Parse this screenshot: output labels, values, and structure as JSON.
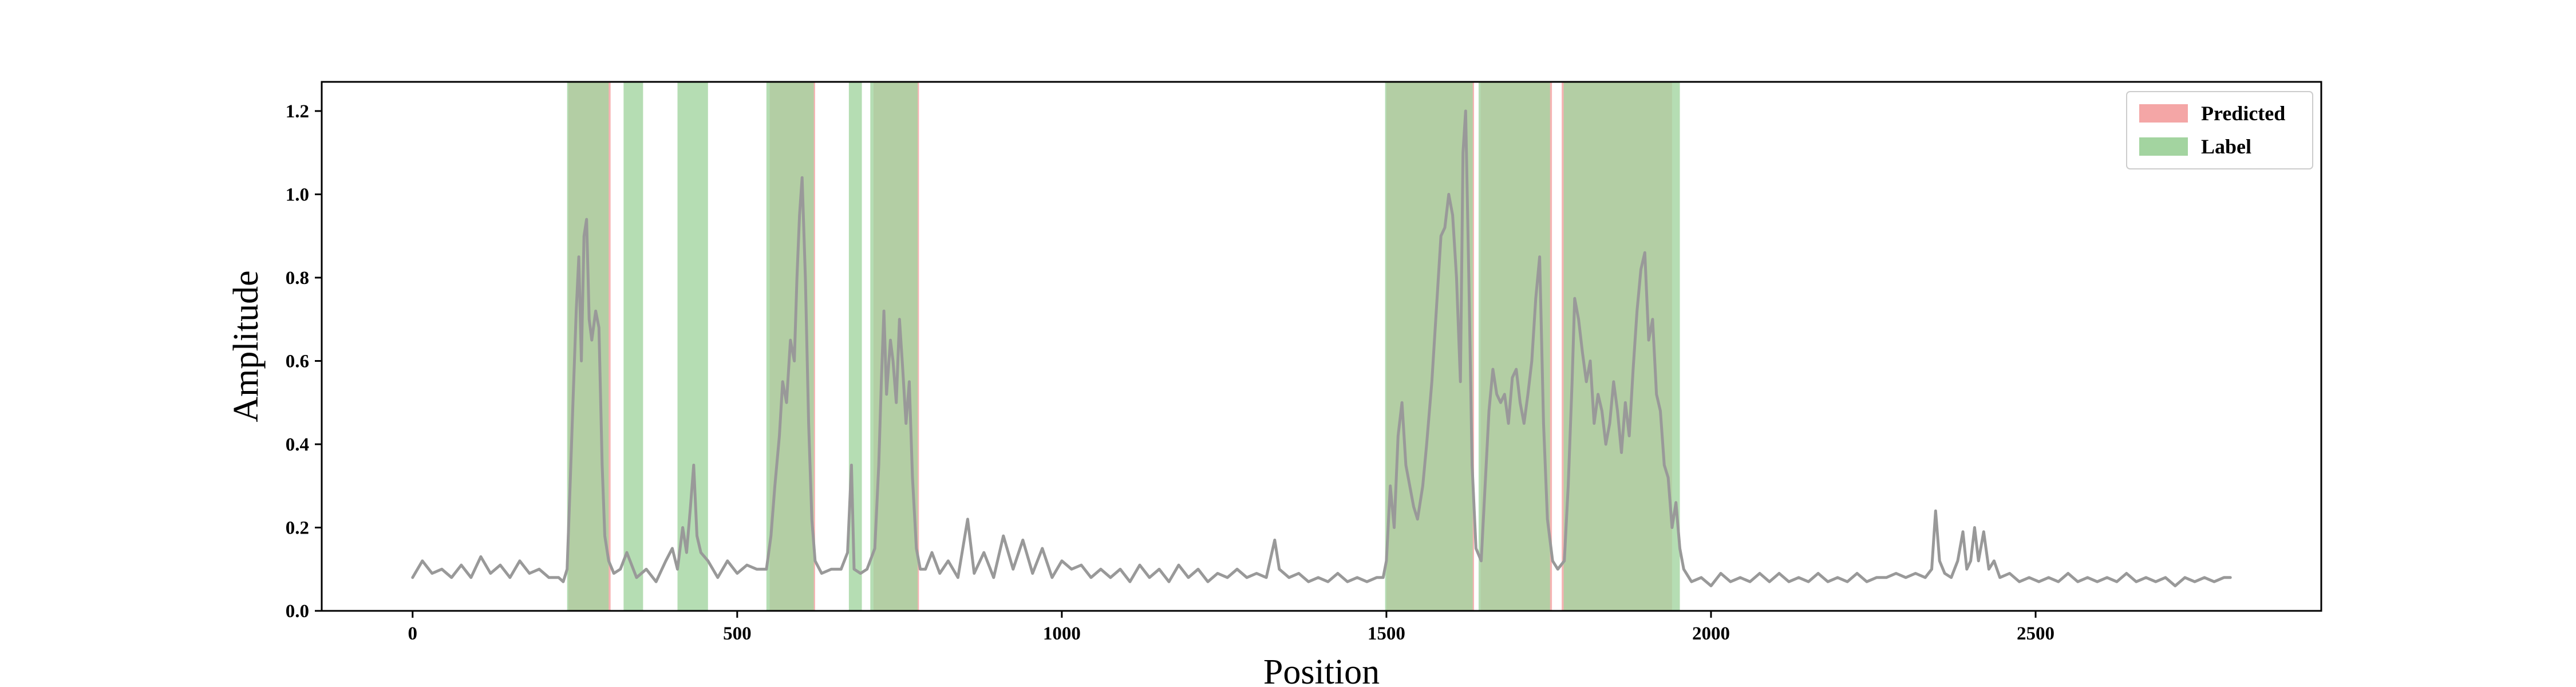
{
  "chart_data": {
    "type": "line",
    "xlabel": "Position",
    "ylabel": "Amplitude",
    "xlim": [
      -140,
      2940
    ],
    "ylim": [
      0,
      1.27
    ],
    "xticks": [
      0,
      500,
      1000,
      1500,
      2000,
      2500
    ],
    "yticks": [
      0.0,
      0.2,
      0.4,
      0.6,
      0.8,
      1.0,
      1.2
    ],
    "xtick_labels": [
      "0",
      "500",
      "1000",
      "1500",
      "2000",
      "2500"
    ],
    "ytick_labels": [
      "0.0",
      "0.2",
      "0.4",
      "0.6",
      "0.8",
      "1.0",
      "1.2"
    ],
    "legend": {
      "placement": "top-right",
      "entries": [
        {
          "label": "Predicted",
          "color": "#f4a6a6"
        },
        {
          "label": "Label",
          "color": "#a3d4a0"
        }
      ]
    },
    "line_color": "#999999",
    "predicted_regions": [
      [
        240,
        305
      ],
      [
        550,
        620
      ],
      [
        710,
        780
      ],
      [
        1500,
        1635
      ],
      [
        1645,
        1755
      ],
      [
        1770,
        1940
      ]
    ],
    "label_regions": [
      [
        238,
        302
      ],
      [
        325,
        355
      ],
      [
        408,
        455
      ],
      [
        545,
        618
      ],
      [
        672,
        692
      ],
      [
        705,
        778
      ],
      [
        1498,
        1633
      ],
      [
        1642,
        1752
      ],
      [
        1773,
        1952
      ]
    ],
    "series": [
      {
        "values": [
          [
            0,
            0.08
          ],
          [
            15,
            0.12
          ],
          [
            30,
            0.09
          ],
          [
            45,
            0.1
          ],
          [
            60,
            0.08
          ],
          [
            75,
            0.11
          ],
          [
            90,
            0.08
          ],
          [
            105,
            0.13
          ],
          [
            120,
            0.09
          ],
          [
            135,
            0.11
          ],
          [
            150,
            0.08
          ],
          [
            165,
            0.12
          ],
          [
            180,
            0.09
          ],
          [
            195,
            0.1
          ],
          [
            210,
            0.08
          ],
          [
            225,
            0.08
          ],
          [
            232,
            0.07
          ],
          [
            238,
            0.1
          ],
          [
            243,
            0.32
          ],
          [
            247,
            0.5
          ],
          [
            252,
            0.72
          ],
          [
            256,
            0.85
          ],
          [
            260,
            0.6
          ],
          [
            264,
            0.9
          ],
          [
            268,
            0.94
          ],
          [
            272,
            0.7
          ],
          [
            276,
            0.65
          ],
          [
            282,
            0.72
          ],
          [
            287,
            0.68
          ],
          [
            292,
            0.35
          ],
          [
            296,
            0.18
          ],
          [
            302,
            0.12
          ],
          [
            310,
            0.09
          ],
          [
            320,
            0.1
          ],
          [
            330,
            0.14
          ],
          [
            345,
            0.08
          ],
          [
            360,
            0.1
          ],
          [
            375,
            0.07
          ],
          [
            390,
            0.12
          ],
          [
            400,
            0.15
          ],
          [
            408,
            0.1
          ],
          [
            416,
            0.2
          ],
          [
            422,
            0.14
          ],
          [
            428,
            0.25
          ],
          [
            433,
            0.35
          ],
          [
            438,
            0.18
          ],
          [
            444,
            0.14
          ],
          [
            455,
            0.12
          ],
          [
            470,
            0.08
          ],
          [
            485,
            0.12
          ],
          [
            500,
            0.09
          ],
          [
            515,
            0.11
          ],
          [
            530,
            0.1
          ],
          [
            545,
            0.1
          ],
          [
            552,
            0.18
          ],
          [
            558,
            0.3
          ],
          [
            565,
            0.42
          ],
          [
            570,
            0.55
          ],
          [
            576,
            0.5
          ],
          [
            582,
            0.65
          ],
          [
            588,
            0.6
          ],
          [
            592,
            0.8
          ],
          [
            596,
            0.95
          ],
          [
            600,
            1.04
          ],
          [
            605,
            0.8
          ],
          [
            610,
            0.45
          ],
          [
            615,
            0.22
          ],
          [
            620,
            0.12
          ],
          [
            630,
            0.09
          ],
          [
            645,
            0.1
          ],
          [
            660,
            0.1
          ],
          [
            670,
            0.14
          ],
          [
            676,
            0.35
          ],
          [
            680,
            0.1
          ],
          [
            690,
            0.09
          ],
          [
            700,
            0.1
          ],
          [
            712,
            0.15
          ],
          [
            718,
            0.35
          ],
          [
            722,
            0.55
          ],
          [
            726,
            0.72
          ],
          [
            730,
            0.52
          ],
          [
            736,
            0.65
          ],
          [
            740,
            0.6
          ],
          [
            745,
            0.5
          ],
          [
            750,
            0.7
          ],
          [
            755,
            0.58
          ],
          [
            760,
            0.45
          ],
          [
            765,
            0.55
          ],
          [
            770,
            0.32
          ],
          [
            776,
            0.15
          ],
          [
            782,
            0.1
          ],
          [
            790,
            0.1
          ],
          [
            800,
            0.14
          ],
          [
            812,
            0.09
          ],
          [
            825,
            0.12
          ],
          [
            840,
            0.08
          ],
          [
            855,
            0.22
          ],
          [
            865,
            0.09
          ],
          [
            880,
            0.14
          ],
          [
            895,
            0.08
          ],
          [
            910,
            0.18
          ],
          [
            925,
            0.1
          ],
          [
            940,
            0.17
          ],
          [
            955,
            0.09
          ],
          [
            970,
            0.15
          ],
          [
            985,
            0.08
          ],
          [
            1000,
            0.12
          ],
          [
            1015,
            0.1
          ],
          [
            1030,
            0.11
          ],
          [
            1045,
            0.08
          ],
          [
            1060,
            0.1
          ],
          [
            1075,
            0.08
          ],
          [
            1090,
            0.1
          ],
          [
            1105,
            0.07
          ],
          [
            1120,
            0.11
          ],
          [
            1135,
            0.08
          ],
          [
            1150,
            0.1
          ],
          [
            1165,
            0.07
          ],
          [
            1180,
            0.11
          ],
          [
            1195,
            0.08
          ],
          [
            1210,
            0.1
          ],
          [
            1225,
            0.07
          ],
          [
            1240,
            0.09
          ],
          [
            1255,
            0.08
          ],
          [
            1270,
            0.1
          ],
          [
            1285,
            0.08
          ],
          [
            1300,
            0.09
          ],
          [
            1315,
            0.08
          ],
          [
            1328,
            0.17
          ],
          [
            1335,
            0.1
          ],
          [
            1350,
            0.08
          ],
          [
            1365,
            0.09
          ],
          [
            1380,
            0.07
          ],
          [
            1395,
            0.08
          ],
          [
            1410,
            0.07
          ],
          [
            1425,
            0.09
          ],
          [
            1440,
            0.07
          ],
          [
            1455,
            0.08
          ],
          [
            1470,
            0.07
          ],
          [
            1485,
            0.08
          ],
          [
            1495,
            0.08
          ],
          [
            1500,
            0.12
          ],
          [
            1506,
            0.3
          ],
          [
            1512,
            0.2
          ],
          [
            1518,
            0.42
          ],
          [
            1524,
            0.5
          ],
          [
            1530,
            0.35
          ],
          [
            1536,
            0.3
          ],
          [
            1542,
            0.25
          ],
          [
            1548,
            0.22
          ],
          [
            1556,
            0.3
          ],
          [
            1562,
            0.4
          ],
          [
            1570,
            0.55
          ],
          [
            1578,
            0.75
          ],
          [
            1584,
            0.9
          ],
          [
            1590,
            0.92
          ],
          [
            1596,
            1.0
          ],
          [
            1602,
            0.95
          ],
          [
            1608,
            0.8
          ],
          [
            1614,
            0.55
          ],
          [
            1618,
            1.1
          ],
          [
            1622,
            1.2
          ],
          [
            1627,
            0.8
          ],
          [
            1632,
            0.35
          ],
          [
            1638,
            0.15
          ],
          [
            1646,
            0.12
          ],
          [
            1652,
            0.3
          ],
          [
            1658,
            0.48
          ],
          [
            1664,
            0.58
          ],
          [
            1670,
            0.52
          ],
          [
            1676,
            0.5
          ],
          [
            1682,
            0.52
          ],
          [
            1688,
            0.45
          ],
          [
            1694,
            0.56
          ],
          [
            1700,
            0.58
          ],
          [
            1706,
            0.5
          ],
          [
            1712,
            0.45
          ],
          [
            1718,
            0.52
          ],
          [
            1724,
            0.6
          ],
          [
            1730,
            0.75
          ],
          [
            1736,
            0.85
          ],
          [
            1742,
            0.45
          ],
          [
            1748,
            0.22
          ],
          [
            1756,
            0.12
          ],
          [
            1764,
            0.1
          ],
          [
            1774,
            0.12
          ],
          [
            1780,
            0.3
          ],
          [
            1786,
            0.55
          ],
          [
            1790,
            0.75
          ],
          [
            1796,
            0.7
          ],
          [
            1802,
            0.62
          ],
          [
            1808,
            0.55
          ],
          [
            1814,
            0.6
          ],
          [
            1820,
            0.45
          ],
          [
            1826,
            0.52
          ],
          [
            1832,
            0.48
          ],
          [
            1838,
            0.4
          ],
          [
            1844,
            0.45
          ],
          [
            1850,
            0.55
          ],
          [
            1856,
            0.48
          ],
          [
            1862,
            0.38
          ],
          [
            1868,
            0.5
          ],
          [
            1874,
            0.42
          ],
          [
            1880,
            0.58
          ],
          [
            1886,
            0.72
          ],
          [
            1892,
            0.82
          ],
          [
            1898,
            0.86
          ],
          [
            1904,
            0.65
          ],
          [
            1910,
            0.7
          ],
          [
            1916,
            0.52
          ],
          [
            1922,
            0.48
          ],
          [
            1928,
            0.35
          ],
          [
            1934,
            0.32
          ],
          [
            1940,
            0.2
          ],
          [
            1946,
            0.26
          ],
          [
            1952,
            0.15
          ],
          [
            1958,
            0.1
          ],
          [
            1970,
            0.07
          ],
          [
            1985,
            0.08
          ],
          [
            2000,
            0.06
          ],
          [
            2015,
            0.09
          ],
          [
            2030,
            0.07
          ],
          [
            2045,
            0.08
          ],
          [
            2060,
            0.07
          ],
          [
            2075,
            0.09
          ],
          [
            2090,
            0.07
          ],
          [
            2105,
            0.09
          ],
          [
            2120,
            0.07
          ],
          [
            2135,
            0.08
          ],
          [
            2150,
            0.07
          ],
          [
            2165,
            0.09
          ],
          [
            2180,
            0.07
          ],
          [
            2195,
            0.08
          ],
          [
            2210,
            0.07
          ],
          [
            2225,
            0.09
          ],
          [
            2240,
            0.07
          ],
          [
            2255,
            0.08
          ],
          [
            2270,
            0.08
          ],
          [
            2285,
            0.09
          ],
          [
            2300,
            0.08
          ],
          [
            2315,
            0.09
          ],
          [
            2330,
            0.08
          ],
          [
            2340,
            0.1
          ],
          [
            2346,
            0.24
          ],
          [
            2352,
            0.12
          ],
          [
            2360,
            0.09
          ],
          [
            2370,
            0.08
          ],
          [
            2380,
            0.12
          ],
          [
            2388,
            0.19
          ],
          [
            2394,
            0.1
          ],
          [
            2400,
            0.12
          ],
          [
            2406,
            0.2
          ],
          [
            2412,
            0.12
          ],
          [
            2420,
            0.19
          ],
          [
            2428,
            0.1
          ],
          [
            2436,
            0.12
          ],
          [
            2445,
            0.08
          ],
          [
            2460,
            0.09
          ],
          [
            2475,
            0.07
          ],
          [
            2490,
            0.08
          ],
          [
            2505,
            0.07
          ],
          [
            2520,
            0.08
          ],
          [
            2535,
            0.07
          ],
          [
            2550,
            0.09
          ],
          [
            2565,
            0.07
          ],
          [
            2580,
            0.08
          ],
          [
            2595,
            0.07
          ],
          [
            2610,
            0.08
          ],
          [
            2625,
            0.07
          ],
          [
            2640,
            0.09
          ],
          [
            2655,
            0.07
          ],
          [
            2670,
            0.08
          ],
          [
            2685,
            0.07
          ],
          [
            2700,
            0.08
          ],
          [
            2715,
            0.06
          ],
          [
            2730,
            0.08
          ],
          [
            2745,
            0.07
          ],
          [
            2760,
            0.08
          ],
          [
            2775,
            0.07
          ],
          [
            2790,
            0.08
          ],
          [
            2800,
            0.08
          ]
        ]
      }
    ]
  }
}
